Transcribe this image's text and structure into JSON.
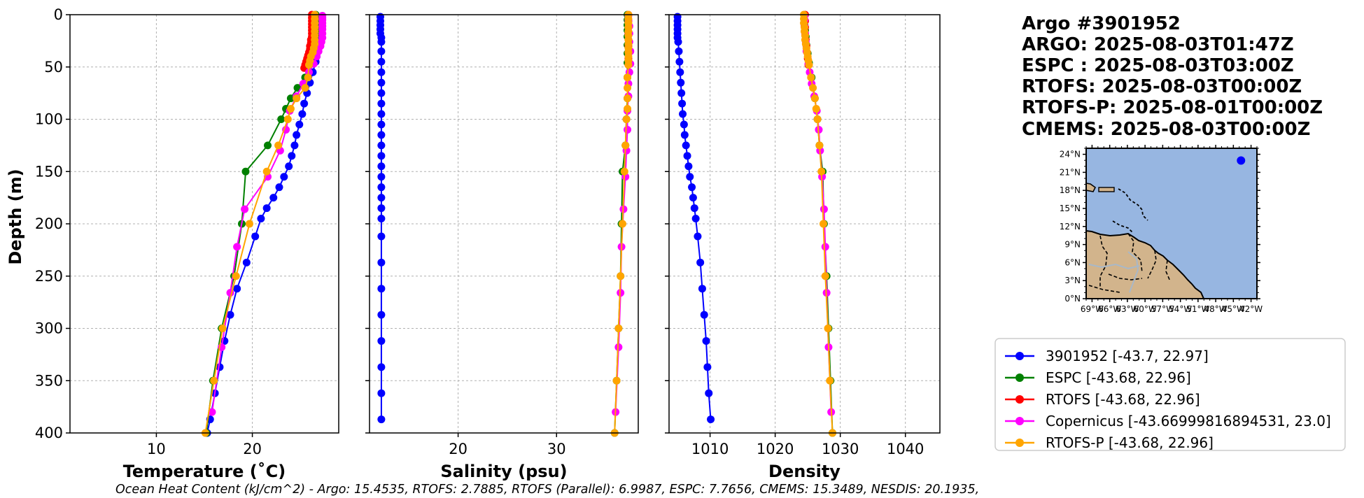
{
  "title_lines": [
    "Argo #3901952",
    "ARGO: 2025-08-03T01:47Z",
    "ESPC : 2025-08-03T03:00Z",
    "RTOFS: 2025-08-03T00:00Z",
    "RTOFS-P: 2025-08-01T00:00Z",
    "CMEMS: 2025-08-03T00:00Z"
  ],
  "footer": "Ocean Heat Content (kJ/cm^2) - Argo: 15.4535,  RTOFS: 2.7885,  RTOFS (Parallel): 6.9987,  ESPC: 7.7656,  CMEMS: 15.3489,  NESDIS: 20.1935,",
  "colors": {
    "argo": "#0000ff",
    "espc": "#008000",
    "rtofs": "#ff0000",
    "copernicus": "#ff00ff",
    "rtofs_p": "#ffa500",
    "ocean": "#97b6e1",
    "land": "#d2b48c"
  },
  "legend": [
    {
      "key": "argo",
      "label": "3901952 [-43.7, 22.97]"
    },
    {
      "key": "espc",
      "label": "ESPC [-43.68, 22.96]"
    },
    {
      "key": "rtofs",
      "label": "RTOFS [-43.68, 22.96]"
    },
    {
      "key": "copernicus",
      "label": "Copernicus [-43.66999816894531, 23.0]"
    },
    {
      "key": "rtofs_p",
      "label": "RTOFS-P [-43.68, 22.96]"
    }
  ],
  "map": {
    "lat_ticks": [
      "0°N",
      "3°N",
      "6°N",
      "9°N",
      "12°N",
      "15°N",
      "18°N",
      "21°N",
      "24°N"
    ],
    "lon_ticks": [
      "69°W",
      "66°W",
      "63°W",
      "60°W",
      "57°W",
      "54°W",
      "51°W",
      "48°W",
      "45°W",
      "42°W"
    ],
    "lon_range": [
      -70,
      -41
    ],
    "lat_range": [
      0,
      25
    ],
    "float_position": {
      "lon": -43.7,
      "lat": 22.97
    }
  },
  "chart_data": [
    {
      "type": "line",
      "xlabel": "Temperature (˚C)",
      "ylabel": "Depth (m)",
      "xlim": [
        1,
        29
      ],
      "ylim": [
        400,
        0
      ],
      "xticks": [
        10,
        20
      ],
      "yticks": [
        0,
        50,
        100,
        150,
        200,
        250,
        300,
        350,
        400
      ],
      "series": [
        {
          "name": "3901952",
          "key": "argo",
          "depth": [
            2,
            6,
            10,
            14,
            18,
            22,
            26,
            30,
            35,
            40,
            45,
            55,
            65,
            75,
            85,
            95,
            105,
            115,
            125,
            135,
            145,
            155,
            165,
            175,
            185,
            195,
            212,
            237,
            262,
            287,
            312,
            337,
            362,
            387,
            400
          ],
          "values": [
            27.2,
            27.2,
            27.2,
            27.1,
            27.1,
            27.1,
            27.0,
            26.9,
            26.8,
            26.7,
            26.6,
            26.3,
            26.0,
            25.7,
            25.4,
            25.2,
            24.9,
            24.6,
            24.4,
            24.1,
            23.8,
            23.3,
            22.8,
            22.2,
            21.5,
            20.9,
            20.3,
            19.4,
            18.4,
            17.7,
            17.1,
            16.6,
            16.1,
            15.6,
            15.3
          ]
        },
        {
          "name": "ESPC",
          "key": "espc",
          "depth": [
            0,
            2,
            4,
            6,
            8,
            10,
            12,
            15,
            18,
            21,
            25,
            29,
            33,
            37,
            41,
            46,
            51,
            60,
            70,
            80,
            90,
            100,
            125,
            150,
            200,
            250,
            300,
            350,
            400
          ],
          "values": [
            26.6,
            26.6,
            26.6,
            26.6,
            26.6,
            26.6,
            26.6,
            26.6,
            26.6,
            26.5,
            26.4,
            26.3,
            26.2,
            26.1,
            26.0,
            25.9,
            25.8,
            25.5,
            24.7,
            24.0,
            23.5,
            23.0,
            21.6,
            19.3,
            18.9,
            18.1,
            16.8,
            15.9,
            15.2
          ]
        },
        {
          "name": "RTOFS",
          "key": "rtofs",
          "depth": [
            0,
            3,
            6,
            9,
            12,
            15,
            18,
            21,
            24,
            27,
            30,
            33,
            36,
            39,
            42,
            45,
            48,
            51
          ],
          "values": [
            26.2,
            26.2,
            26.2,
            26.2,
            26.2,
            26.2,
            26.2,
            26.2,
            26.1,
            26.1,
            26.0,
            26.0,
            25.9,
            25.8,
            25.7,
            25.6,
            25.5,
            25.4
          ]
        },
        {
          "name": "Copernicus",
          "key": "copernicus",
          "depth": [
            1,
            3,
            5,
            8,
            11,
            14,
            18,
            22,
            26,
            30,
            35,
            40,
            47,
            55,
            66,
            78,
            92,
            110,
            130,
            155,
            186,
            222,
            266,
            318,
            380
          ],
          "values": [
            27.3,
            27.3,
            27.3,
            27.3,
            27.3,
            27.3,
            27.3,
            27.3,
            27.2,
            27.1,
            26.9,
            26.7,
            26.4,
            25.9,
            25.3,
            24.6,
            23.9,
            23.5,
            22.9,
            21.6,
            19.2,
            18.4,
            17.7,
            16.8,
            15.8
          ]
        },
        {
          "name": "RTOFS-P",
          "key": "rtofs_p",
          "depth": [
            0,
            4,
            8,
            12,
            16,
            20,
            24,
            28,
            32,
            36,
            40,
            44,
            48,
            60,
            70,
            80,
            90,
            100,
            125,
            150,
            200,
            250,
            300,
            350,
            400
          ],
          "values": [
            26.5,
            26.5,
            26.5,
            26.5,
            26.5,
            26.5,
            26.5,
            26.5,
            26.4,
            26.3,
            26.1,
            26.0,
            25.9,
            25.8,
            25.5,
            24.6,
            24.0,
            23.7,
            22.7,
            21.5,
            19.7,
            18.3,
            16.9,
            16.0,
            15.1
          ]
        }
      ]
    },
    {
      "type": "line",
      "xlabel": "Salinity (psu)",
      "ylabel": "",
      "xlim": [
        11,
        38.3
      ],
      "ylim": [
        400,
        0
      ],
      "xticks": [
        20,
        30
      ],
      "yticks": [
        0,
        50,
        100,
        150,
        200,
        250,
        300,
        350,
        400
      ],
      "series": [
        {
          "name": "3901952",
          "key": "argo",
          "depth": [
            2,
            6,
            10,
            14,
            18,
            22,
            26,
            35,
            45,
            55,
            65,
            75,
            85,
            95,
            105,
            115,
            125,
            135,
            145,
            155,
            165,
            175,
            185,
            195,
            212,
            237,
            262,
            287,
            312,
            337,
            362,
            387
          ],
          "values": [
            12.1,
            12.1,
            12.1,
            12.1,
            12.1,
            12.2,
            12.2,
            12.2,
            12.2,
            12.2,
            12.2,
            12.2,
            12.2,
            12.2,
            12.2,
            12.2,
            12.2,
            12.2,
            12.2,
            12.2,
            12.2,
            12.2,
            12.2,
            12.2,
            12.2,
            12.2,
            12.2,
            12.2,
            12.2,
            12.2,
            12.2,
            12.2
          ]
        },
        {
          "name": "ESPC",
          "key": "espc",
          "depth": [
            0,
            5,
            10,
            15,
            21,
            29,
            37,
            46,
            60,
            80,
            100,
            125,
            150,
            200,
            250,
            300,
            350,
            400
          ],
          "values": [
            37.2,
            37.2,
            37.2,
            37.2,
            37.2,
            37.2,
            37.2,
            37.2,
            37.2,
            37.2,
            37.1,
            37.0,
            36.7,
            36.6,
            36.5,
            36.3,
            36.1,
            35.9
          ]
        },
        {
          "name": "RTOFS",
          "key": "rtofs",
          "depth": [
            0,
            6,
            12,
            18,
            24,
            30,
            36,
            42,
            48
          ],
          "values": [
            37.3,
            37.3,
            37.3,
            37.3,
            37.3,
            37.3,
            37.3,
            37.3,
            37.3
          ]
        },
        {
          "name": "Copernicus",
          "key": "copernicus",
          "depth": [
            1,
            5,
            11,
            18,
            26,
            35,
            47,
            55,
            66,
            78,
            92,
            110,
            130,
            155,
            186,
            222,
            266,
            318,
            380
          ],
          "values": [
            37.3,
            37.3,
            37.4,
            37.4,
            37.4,
            37.5,
            37.5,
            37.4,
            37.3,
            37.3,
            37.2,
            37.2,
            37.1,
            37.0,
            36.8,
            36.6,
            36.5,
            36.3,
            36.0
          ]
        },
        {
          "name": "RTOFS-P",
          "key": "rtofs_p",
          "depth": [
            0,
            4,
            8,
            12,
            16,
            20,
            24,
            28,
            32,
            36,
            40,
            44,
            48,
            60,
            70,
            80,
            90,
            100,
            125,
            150,
            200,
            250,
            300,
            350,
            400
          ],
          "values": [
            37.3,
            37.3,
            37.3,
            37.3,
            37.3,
            37.3,
            37.3,
            37.3,
            37.3,
            37.3,
            37.3,
            37.3,
            37.3,
            37.2,
            37.2,
            37.2,
            37.2,
            37.1,
            37.0,
            36.9,
            36.7,
            36.5,
            36.3,
            36.1,
            35.9
          ]
        }
      ]
    },
    {
      "type": "line",
      "xlabel": "Density",
      "ylabel": "",
      "xlim": [
        1003.7,
        1045.3
      ],
      "ylim": [
        400,
        0
      ],
      "xticks": [
        1010,
        1020,
        1030,
        1040
      ],
      "yticks": [
        0,
        50,
        100,
        150,
        200,
        250,
        300,
        350,
        400
      ],
      "series": [
        {
          "name": "3901952",
          "key": "argo",
          "depth": [
            2,
            6,
            10,
            14,
            18,
            22,
            26,
            35,
            45,
            55,
            65,
            75,
            85,
            95,
            105,
            115,
            125,
            135,
            145,
            155,
            165,
            175,
            185,
            195,
            212,
            237,
            262,
            287,
            312,
            337,
            362,
            387
          ],
          "values": [
            1005.0,
            1005.0,
            1005.0,
            1005.0,
            1005.0,
            1005.0,
            1005.1,
            1005.2,
            1005.3,
            1005.4,
            1005.5,
            1005.6,
            1005.7,
            1005.8,
            1006.0,
            1006.1,
            1006.3,
            1006.5,
            1006.7,
            1006.9,
            1007.2,
            1007.4,
            1007.6,
            1007.8,
            1008.1,
            1008.5,
            1008.8,
            1009.1,
            1009.4,
            1009.6,
            1009.8,
            1010.1
          ]
        },
        {
          "name": "ESPC",
          "key": "espc",
          "depth": [
            0,
            5,
            10,
            15,
            21,
            29,
            37,
            46,
            60,
            80,
            100,
            125,
            150,
            200,
            250,
            300,
            350,
            400
          ],
          "values": [
            1024.5,
            1024.5,
            1024.5,
            1024.6,
            1024.7,
            1024.8,
            1025.0,
            1025.2,
            1025.6,
            1026.1,
            1026.5,
            1026.8,
            1027.3,
            1027.5,
            1027.9,
            1028.2,
            1028.5,
            1028.8
          ]
        },
        {
          "name": "RTOFS",
          "key": "rtofs",
          "depth": [
            0,
            6,
            12,
            18,
            24,
            30,
            36,
            42,
            48
          ],
          "values": [
            1024.6,
            1024.6,
            1024.6,
            1024.6,
            1024.7,
            1024.8,
            1024.9,
            1025.0,
            1025.1
          ]
        },
        {
          "name": "Copernicus",
          "key": "copernicus",
          "depth": [
            1,
            5,
            11,
            18,
            26,
            35,
            47,
            55,
            66,
            78,
            92,
            110,
            130,
            155,
            186,
            222,
            266,
            318,
            380
          ],
          "values": [
            1024.5,
            1024.5,
            1024.5,
            1024.6,
            1024.7,
            1024.8,
            1025.1,
            1025.3,
            1025.6,
            1026.0,
            1026.4,
            1026.7,
            1026.9,
            1027.2,
            1027.5,
            1027.7,
            1027.9,
            1028.2,
            1028.6
          ]
        },
        {
          "name": "RTOFS-P",
          "key": "rtofs_p",
          "depth": [
            0,
            4,
            8,
            12,
            16,
            20,
            24,
            28,
            32,
            36,
            40,
            44,
            48,
            60,
            70,
            80,
            90,
            100,
            125,
            150,
            200,
            250,
            300,
            350,
            400
          ],
          "values": [
            1024.4,
            1024.4,
            1024.4,
            1024.5,
            1024.5,
            1024.6,
            1024.6,
            1024.7,
            1024.8,
            1024.9,
            1025.0,
            1025.1,
            1025.2,
            1025.5,
            1025.8,
            1026.1,
            1026.3,
            1026.5,
            1026.8,
            1027.1,
            1027.4,
            1027.7,
            1028.1,
            1028.4,
            1028.8
          ]
        }
      ]
    }
  ]
}
